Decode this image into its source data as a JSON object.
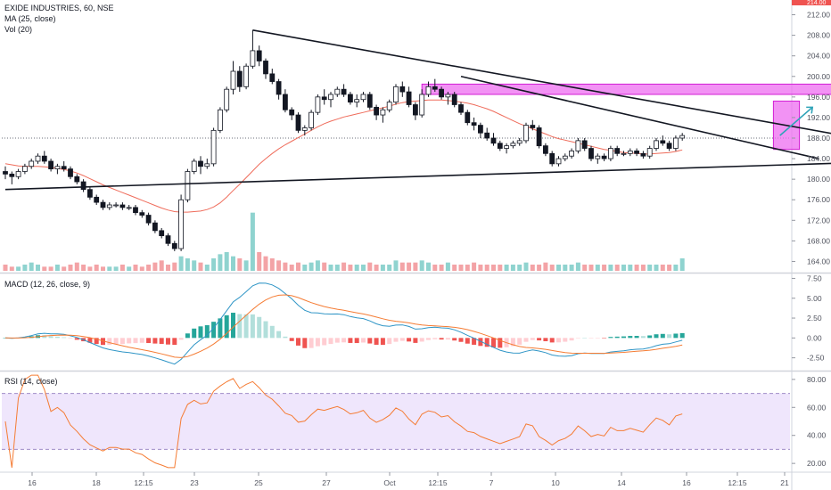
{
  "chart_data": {
    "type": "candlestick",
    "header": "EXIDE INDUSTRIES, 60, NSE",
    "studies": {
      "ma": "MA (25, close)",
      "vol": "Vol (20)",
      "macd": "MACD (12, 26, close, 9)",
      "rsi": "RSI (14, close)"
    },
    "price_axis": {
      "ticks": [
        "212.00",
        "208.00",
        "204.00",
        "200.00",
        "196.00",
        "192.00",
        "188.00",
        "184.00",
        "180.00",
        "176.00",
        "172.00",
        "168.00",
        "164.00"
      ],
      "min": 162,
      "max": 214,
      "last_label": "214.00"
    },
    "macd_axis": {
      "ticks": [
        "7.50",
        "5.00",
        "2.50",
        "0.00",
        "-2.50"
      ],
      "min": -4,
      "max": 8
    },
    "rsi_axis": {
      "ticks": [
        "80.00",
        "60.00",
        "40.00",
        "20.00"
      ],
      "min": 15,
      "max": 85,
      "band": [
        30,
        70
      ]
    },
    "time_axis": [
      "16",
      "18",
      "12:15",
      "23",
      "25",
      "27",
      "Oct",
      "12:15",
      "7",
      "10",
      "14",
      "16",
      "12:15",
      "21"
    ],
    "candles": [
      [
        181.5,
        182.5,
        180,
        181
      ],
      [
        181,
        181.5,
        179,
        180.5
      ],
      [
        180.5,
        182,
        180,
        181.5
      ],
      [
        181.5,
        183,
        181,
        182.5
      ],
      [
        182.5,
        184,
        182,
        183.5
      ],
      [
        183.5,
        185,
        183,
        184.5
      ],
      [
        184.5,
        185.5,
        183,
        183.5
      ],
      [
        183.5,
        184,
        181.5,
        182
      ],
      [
        182,
        183,
        181,
        182.5
      ],
      [
        182.5,
        183.5,
        181.5,
        182
      ],
      [
        182,
        182.5,
        180,
        180.5
      ],
      [
        180.5,
        181,
        179,
        179.5
      ],
      [
        179.5,
        180,
        177.5,
        178
      ],
      [
        178,
        178.5,
        176,
        176.5
      ],
      [
        176.5,
        177,
        175,
        175.5
      ],
      [
        175.5,
        176,
        174,
        174.5
      ],
      [
        174.5,
        175.5,
        174,
        175
      ],
      [
        175,
        175.5,
        174.5,
        175
      ],
      [
        175,
        175.5,
        174,
        174.5
      ],
      [
        174.5,
        175,
        174,
        174.5
      ],
      [
        174.5,
        175,
        173,
        173.5
      ],
      [
        173.5,
        174,
        172.5,
        173
      ],
      [
        173,
        173.5,
        171,
        171.5
      ],
      [
        171.5,
        172,
        169.5,
        170
      ],
      [
        170,
        170.5,
        168.5,
        169
      ],
      [
        169,
        169.5,
        167,
        167.5
      ],
      [
        167.5,
        168,
        166,
        166.5
      ],
      [
        166.5,
        177,
        166,
        176
      ],
      [
        176,
        182,
        175.5,
        181.5
      ],
      [
        181.5,
        184,
        181,
        183.5
      ],
      [
        183.5,
        184.5,
        181,
        182.5
      ],
      [
        182.5,
        184,
        182,
        183
      ],
      [
        183,
        190,
        182.5,
        189.5
      ],
      [
        189.5,
        194,
        189,
        193.5
      ],
      [
        193.5,
        198,
        193,
        197.5
      ],
      [
        197.5,
        203,
        196.5,
        201
      ],
      [
        201,
        202,
        197,
        198
      ],
      [
        198,
        202.5,
        197.5,
        202
      ],
      [
        202,
        209,
        201.5,
        205
      ],
      [
        205,
        206,
        202,
        203
      ],
      [
        203,
        203.5,
        199.5,
        200.5
      ],
      [
        200.5,
        201.5,
        198.5,
        199
      ],
      [
        199,
        199.5,
        195.5,
        196.5
      ],
      [
        196.5,
        197.5,
        193,
        193.5
      ],
      [
        193.5,
        194,
        191.5,
        192.5
      ],
      [
        192.5,
        193,
        189,
        189.5
      ],
      [
        189.5,
        190.5,
        188.5,
        190
      ],
      [
        190,
        193.5,
        189.5,
        193
      ],
      [
        193,
        196.5,
        192.5,
        196
      ],
      [
        196,
        197.5,
        194.5,
        195.5
      ],
      [
        195.5,
        197,
        194,
        196.5
      ],
      [
        196.5,
        198,
        196,
        197.5
      ],
      [
        197.5,
        198.5,
        196,
        196.5
      ],
      [
        196.5,
        197,
        194.5,
        195
      ],
      [
        195,
        196.5,
        194,
        195.5
      ],
      [
        195.5,
        197,
        195,
        196.5
      ],
      [
        196.5,
        197,
        193.5,
        194
      ],
      [
        194,
        194.5,
        191.5,
        192.5
      ],
      [
        192.5,
        194,
        191,
        193.5
      ],
      [
        193.5,
        195.5,
        193,
        195
      ],
      [
        195,
        198.5,
        194.5,
        198
      ],
      [
        198,
        199,
        196,
        197
      ],
      [
        197,
        198,
        194,
        194.5
      ],
      [
        194.5,
        195,
        191.5,
        192.5
      ],
      [
        192.5,
        197.5,
        192,
        196.5
      ],
      [
        196.5,
        199,
        196,
        198
      ],
      [
        198,
        199.5,
        197,
        197.5
      ],
      [
        197.5,
        198,
        195.5,
        196
      ],
      [
        196,
        197,
        194.5,
        196.5
      ],
      [
        196.5,
        197,
        194,
        194.5
      ],
      [
        194.5,
        195,
        192.5,
        193
      ],
      [
        193,
        193.5,
        190.5,
        191
      ],
      [
        191,
        192,
        189.5,
        190.5
      ],
      [
        190.5,
        191,
        188,
        189
      ],
      [
        189,
        190,
        187.5,
        188
      ],
      [
        188,
        189,
        186.5,
        187
      ],
      [
        187,
        187.5,
        185.5,
        186
      ],
      [
        186,
        187,
        185,
        186.5
      ],
      [
        186.5,
        187.5,
        186,
        187
      ],
      [
        187,
        188,
        186.5,
        187.5
      ],
      [
        187.5,
        191,
        187,
        190.5
      ],
      [
        190.5,
        191.5,
        189.5,
        190
      ],
      [
        190,
        190.5,
        186,
        186.5
      ],
      [
        186.5,
        187,
        184.5,
        185
      ],
      [
        185,
        185.5,
        182.5,
        183
      ],
      [
        183,
        184.5,
        182.5,
        184
      ],
      [
        184,
        185,
        183.5,
        184.5
      ],
      [
        184.5,
        186,
        184,
        185.5
      ],
      [
        185.5,
        188,
        185,
        187.5
      ],
      [
        187.5,
        188,
        185.5,
        186
      ],
      [
        186,
        186.5,
        183.5,
        184
      ],
      [
        184,
        185,
        183,
        184.5
      ],
      [
        184.5,
        185,
        183.5,
        184
      ],
      [
        184,
        186.5,
        183.5,
        186
      ],
      [
        186,
        186.5,
        184.5,
        185
      ],
      [
        185,
        185.5,
        184.5,
        185
      ],
      [
        185,
        186,
        184.5,
        185.5
      ],
      [
        185.5,
        186,
        184.5,
        185
      ],
      [
        185,
        185.5,
        184,
        184.5
      ],
      [
        184.5,
        186.5,
        184,
        186
      ],
      [
        186,
        188,
        185.5,
        187.5
      ],
      [
        187.5,
        188.5,
        186.5,
        187
      ],
      [
        187,
        187.5,
        185.5,
        186
      ],
      [
        186,
        188.5,
        185.5,
        188
      ],
      [
        188,
        189,
        187.5,
        188.5
      ]
    ],
    "ma_values": [
      183,
      182.8,
      182.6,
      182.5,
      182.5,
      182.5,
      182.4,
      182.3,
      182.1,
      181.9,
      181.6,
      181.2,
      180.7,
      180.1,
      179.5,
      178.9,
      178.4,
      177.9,
      177.4,
      176.9,
      176.4,
      175.9,
      175.4,
      174.9,
      174.4,
      174,
      173.7,
      173.6,
      173.6,
      173.7,
      173.8,
      174.1,
      174.6,
      175.4,
      176.5,
      177.8,
      179,
      180.3,
      181.6,
      182.9,
      184,
      185,
      185.9,
      186.7,
      187.4,
      188.1,
      188.8,
      189.5,
      190.2,
      190.8,
      191.3,
      191.7,
      192.1,
      192.4,
      192.7,
      193,
      193.3,
      193.6,
      193.9,
      194.2,
      194.6,
      194.9,
      195.1,
      195.2,
      195.3,
      195.4,
      195.4,
      195.4,
      195.3,
      195.2,
      195,
      194.8,
      194.5,
      194.1,
      193.7,
      193.2,
      192.6,
      192,
      191.4,
      190.8,
      190.3,
      189.8,
      189.3,
      188.8,
      188.3,
      187.9,
      187.6,
      187.3,
      187,
      186.7,
      186.4,
      186.1,
      185.8,
      185.6,
      185.4,
      185.2,
      185.1,
      185,
      184.9,
      184.9,
      185,
      185.1,
      185.2,
      185.4,
      185.7
    ],
    "volume": [
      3,
      2,
      2,
      3,
      4,
      3,
      2,
      2,
      3,
      2,
      3,
      4,
      3,
      2,
      3,
      2,
      2,
      2,
      3,
      2,
      3,
      2,
      3,
      4,
      5,
      3,
      4,
      7,
      6,
      5,
      4,
      3,
      6,
      8,
      9,
      7,
      6,
      5,
      28,
      9,
      7,
      6,
      5,
      4,
      3,
      4,
      3,
      4,
      5,
      4,
      3,
      3,
      4,
      3,
      3,
      3,
      4,
      3,
      3,
      3,
      5,
      4,
      4,
      4,
      5,
      4,
      3,
      3,
      4,
      3,
      3,
      3,
      4,
      3,
      3,
      3,
      3,
      3,
      3,
      3,
      4,
      3,
      3,
      4,
      3,
      3,
      3,
      3,
      4,
      3,
      3,
      3,
      3,
      3,
      3,
      3,
      3,
      3,
      3,
      3,
      3,
      3,
      3,
      3,
      6
    ],
    "trendlines": [
      {
        "from": [
          38,
          209
        ],
        "to": [
          142,
          185.5
        ]
      },
      {
        "from": [
          70,
          200
        ],
        "to": [
          125,
          184
        ]
      },
      {
        "from": [
          0,
          178
        ],
        "to": [
          150,
          184
        ]
      }
    ],
    "zones": [
      {
        "from": [
          64,
          198.5
        ],
        "to": [
          135,
          196.5
        ],
        "color": "#e91ee7"
      },
      {
        "from": [
          118,
          195.2
        ],
        "to": [
          122,
          185.8
        ],
        "color": "#e91ee7"
      }
    ],
    "colors": {
      "up": "#ffffff",
      "down": "#131722",
      "ma": "#ef6c5b",
      "vol_up": "#8fd3cf",
      "vol_down": "#f3a3a6",
      "macd": "#2f95c6",
      "signal": "#f57c34",
      "rsi": "#f57c34",
      "rsi_band": "#e8dbfb",
      "hist_up": "#26a69a",
      "hist_down": "#ef5350",
      "zone": "#ee6ef0",
      "arrow": "#2fa3b8",
      "last": "#ef5350"
    }
  }
}
